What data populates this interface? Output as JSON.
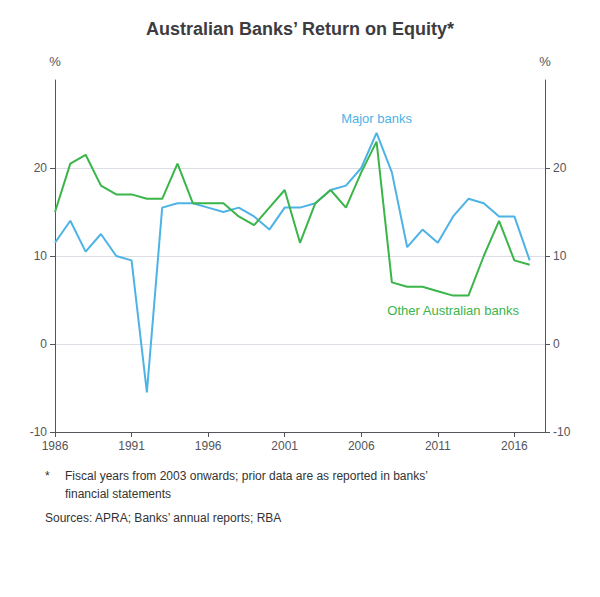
{
  "chart_data": {
    "type": "line",
    "title": "Australian Banks’ Return on Equity*",
    "y_label": "%",
    "y2_label": "%",
    "x": [
      1986,
      1987,
      1988,
      1989,
      1990,
      1991,
      1992,
      1993,
      1994,
      1995,
      1996,
      1997,
      1998,
      1999,
      2000,
      2001,
      2002,
      2003,
      2004,
      2005,
      2006,
      2007,
      2008,
      2009,
      2010,
      2011,
      2012,
      2013,
      2014,
      2015,
      2016,
      2017
    ],
    "xlim": [
      1986,
      2018
    ],
    "xticks": [
      1986,
      1991,
      1996,
      2001,
      2006,
      2011,
      2016
    ],
    "ylim": [
      -10,
      30
    ],
    "yticks": [
      -10,
      0,
      10,
      20
    ],
    "y2lim": [
      -10,
      30
    ],
    "y2ticks": [
      -10,
      0,
      10,
      20
    ],
    "grid": true,
    "series": [
      {
        "name": "Major banks",
        "color": "#4db3e6",
        "values": [
          11.5,
          14.0,
          10.5,
          12.5,
          10.0,
          9.5,
          -5.5,
          15.5,
          16.0,
          16.0,
          15.5,
          15.0,
          15.5,
          14.5,
          13.0,
          15.5,
          15.5,
          16.0,
          17.5,
          18.0,
          20.0,
          24.0,
          19.5,
          11.0,
          13.0,
          11.5,
          14.5,
          16.5,
          16.0,
          14.5,
          14.5,
          9.5
        ]
      },
      {
        "name": "Other Australian banks",
        "color": "#3ab54a",
        "values": [
          15.0,
          20.5,
          21.5,
          18.0,
          17.0,
          17.0,
          16.5,
          16.5,
          20.5,
          16.0,
          16.0,
          16.0,
          14.5,
          13.5,
          15.5,
          17.5,
          11.5,
          16.0,
          17.5,
          15.5,
          19.5,
          23.0,
          7.0,
          6.5,
          6.5,
          6.0,
          5.5,
          5.5,
          10.0,
          14.0,
          9.5,
          9.0
        ]
      }
    ],
    "footnote_marker": "*",
    "footnotes": [
      "Fiscal years from 2003 onwards; prior data are as reported in banks’",
      "financial statements",
      "Sources: APRA; Banks’ annual reports; RBA"
    ]
  }
}
